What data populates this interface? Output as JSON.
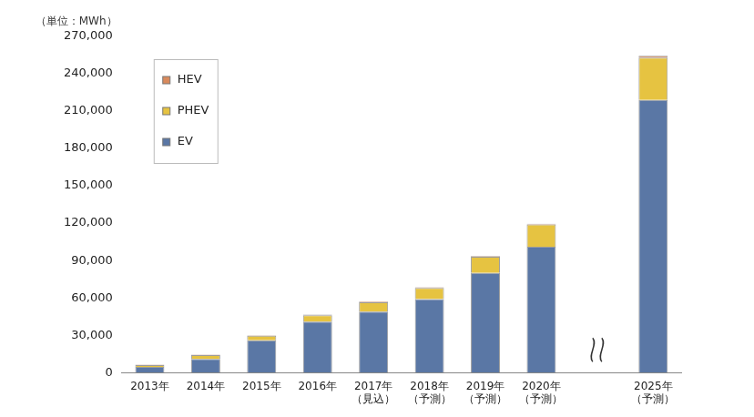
{
  "chart_data": {
    "type": "bar",
    "y_label": "（単位：MWh）",
    "categories": [
      "2013年",
      "2014年",
      "2015年",
      "2016年",
      [
        "2017年",
        "（見込）"
      ],
      [
        "2018年",
        "（予測）"
      ],
      [
        "2019年",
        "（予測）"
      ],
      [
        "2020年",
        "（予測）"
      ],
      null,
      [
        "2025年",
        "（予測）"
      ]
    ],
    "series": [
      {
        "name": "HEV",
        "color": "#d98a5c",
        "values": [
          300,
          400,
          400,
          500,
          500,
          500,
          500,
          600,
          null,
          1500
        ]
      },
      {
        "name": "PHEV",
        "color": "#e6c341",
        "values": [
          1500,
          3000,
          3500,
          5000,
          7500,
          9000,
          13000,
          18000,
          null,
          34000
        ]
      },
      {
        "name": "EV",
        "color": "#5a77a5",
        "values": [
          4500,
          11000,
          26000,
          41000,
          49000,
          59000,
          80000,
          101000,
          null,
          219000
        ]
      }
    ],
    "stacked": true,
    "legend": "upper left",
    "grid": false,
    "ylim": [
      0,
      270000
    ],
    "yticks": [
      0,
      {
        "value": 30000,
        "label": "30,000"
      },
      {
        "value": 60000,
        "label": "60,000"
      },
      {
        "value": 90000,
        "label": "90,000"
      },
      {
        "value": 120000,
        "label": "120,000"
      },
      {
        "value": 150000,
        "label": "150,000"
      },
      {
        "value": 180000,
        "label": "180,000"
      },
      {
        "value": 210000,
        "label": "210,000"
      },
      {
        "value": 240000,
        "label": "240,000"
      },
      {
        "value": 270000,
        "label": "270,000"
      }
    ]
  }
}
